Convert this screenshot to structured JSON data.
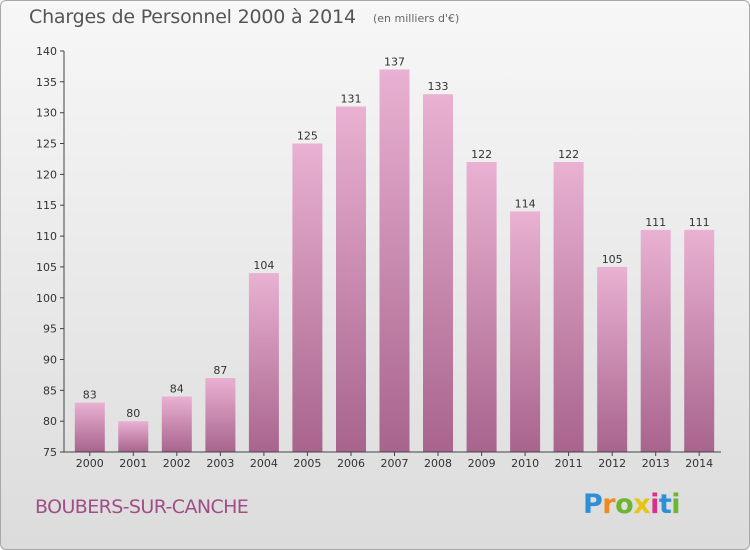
{
  "header": {
    "title": "Charges de Personnel 2000 à 2014",
    "subtitle": "(en milliers d'€)"
  },
  "footer": {
    "town": "BOUBERS-SUR-CANCHE",
    "logo": {
      "letters": [
        "P",
        "r",
        "o",
        "x",
        "i",
        "t",
        "i"
      ],
      "colors": [
        "#2d8fd5",
        "#f08a1c",
        "#6bb52f",
        "#e8c414",
        "#d8318a",
        "#2d8fd5",
        "#6bb52f"
      ]
    }
  },
  "colors": {
    "bar_top": "#e9b1d2",
    "bar_bottom": "#a8648d",
    "axis": "#444444"
  },
  "chart_data": {
    "type": "bar",
    "title": "Charges de Personnel 2000 à 2014",
    "subtitle": "(en milliers d'€)",
    "categories": [
      "2000",
      "2001",
      "2002",
      "2003",
      "2004",
      "2005",
      "2006",
      "2007",
      "2008",
      "2009",
      "2010",
      "2011",
      "2012",
      "2013",
      "2014"
    ],
    "values": [
      83,
      80,
      84,
      87,
      104,
      125,
      131,
      137,
      133,
      122,
      114,
      122,
      105,
      111,
      111
    ],
    "ylim": [
      75,
      140
    ],
    "yticks": [
      75,
      80,
      85,
      90,
      95,
      100,
      105,
      110,
      115,
      120,
      125,
      130,
      135,
      140
    ],
    "grid": false,
    "data_labels": true
  }
}
